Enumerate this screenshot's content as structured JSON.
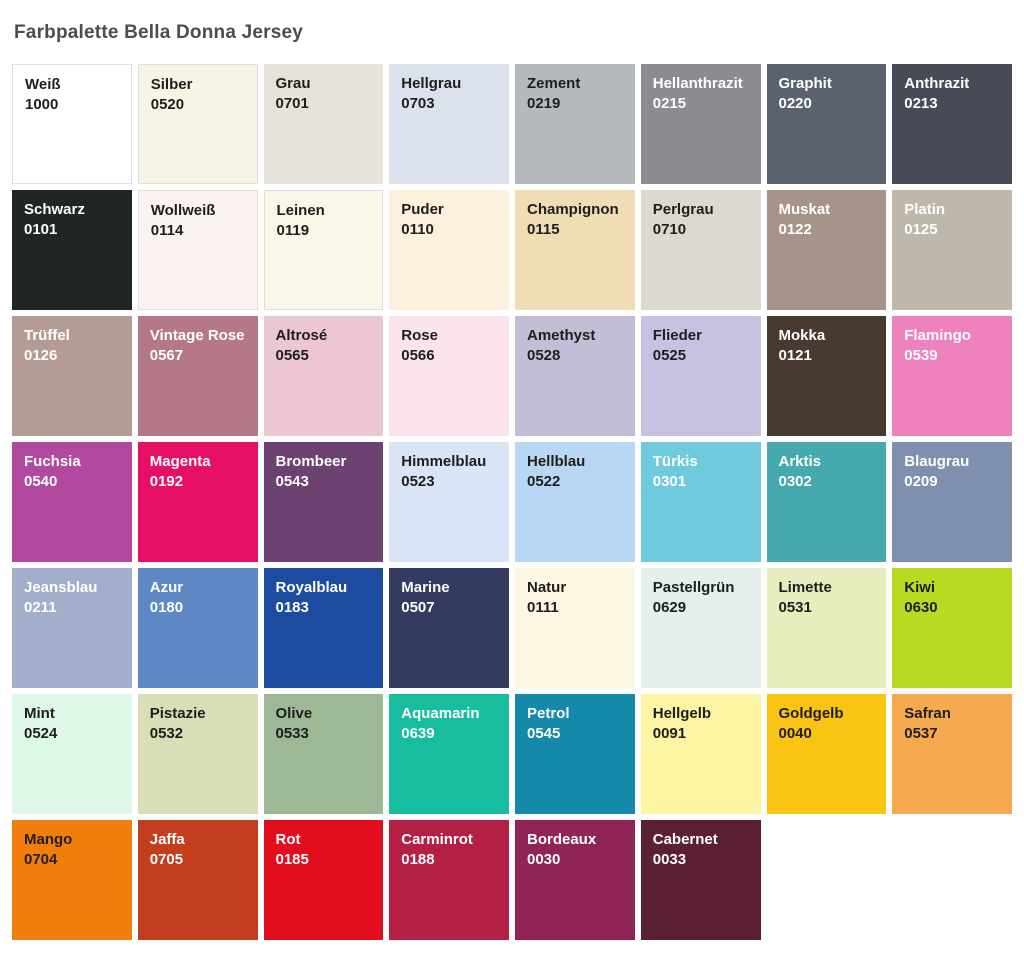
{
  "page": {
    "title": "Farbpalette Bella Donna Jersey",
    "title_color": "#4d4d4d",
    "background": "#ffffff"
  },
  "palette": {
    "columns": 8,
    "swatches": [
      {
        "name": "Weiß",
        "code": "1000",
        "color": "#ffffff",
        "text": "dark",
        "border": true
      },
      {
        "name": "Silber",
        "code": "0520",
        "color": "#f7f4e6",
        "text": "dark",
        "border": true
      },
      {
        "name": "Grau",
        "code": "0701",
        "color": "#e7e3da",
        "text": "dark",
        "border": false
      },
      {
        "name": "Hellgrau",
        "code": "0703",
        "color": "#dbe2eb",
        "text": "dark",
        "border": false
      },
      {
        "name": "Zement",
        "code": "0219",
        "color": "#b7babc",
        "text": "dark",
        "border": false
      },
      {
        "name": "Hellanthrazit",
        "code": "0215",
        "color": "#8b8b91",
        "text": "light",
        "border": false
      },
      {
        "name": "Graphit",
        "code": "0220",
        "color": "#5a626e",
        "text": "light",
        "border": false
      },
      {
        "name": "Anthrazit",
        "code": "0213",
        "color": "#474b55",
        "text": "light",
        "border": false
      },
      {
        "name": "Schwarz",
        "code": "0101",
        "color": "#212622",
        "text": "light",
        "border": false
      },
      {
        "name": "Wollweiß",
        "code": "0114",
        "color": "#faf3f1",
        "text": "dark",
        "border": true
      },
      {
        "name": "Leinen",
        "code": "0119",
        "color": "#fbf7e8",
        "text": "dark",
        "border": true
      },
      {
        "name": "Puder",
        "code": "0110",
        "color": "#fcf1dd",
        "text": "dark",
        "border": false
      },
      {
        "name": "Champignon",
        "code": "0115",
        "color": "#f0ddb6",
        "text": "dark",
        "border": false
      },
      {
        "name": "Perlgrau",
        "code": "0710",
        "color": "#dbd9d0",
        "text": "dark",
        "border": false
      },
      {
        "name": "Muskat",
        "code": "0122",
        "color": "#a6948a",
        "text": "light",
        "border": false
      },
      {
        "name": "Platin",
        "code": "0125",
        "color": "#bdb7ac",
        "text": "light",
        "border": false
      },
      {
        "name": "Trüffel",
        "code": "0126",
        "color": "#b49b95",
        "text": "light",
        "border": false
      },
      {
        "name": "Vintage Rose",
        "code": "0567",
        "color": "#b47889",
        "text": "light",
        "border": false
      },
      {
        "name": "Altrosé",
        "code": "0565",
        "color": "#ecc7d3",
        "text": "dark",
        "border": false
      },
      {
        "name": "Rose",
        "code": "0566",
        "color": "#fce4ef",
        "text": "dark",
        "border": false
      },
      {
        "name": "Amethyst",
        "code": "0528",
        "color": "#c4bdd8",
        "text": "dark",
        "border": false
      },
      {
        "name": "Flieder",
        "code": "0525",
        "color": "#c8c2e2",
        "text": "dark",
        "border": false
      },
      {
        "name": "Mokka",
        "code": "0121",
        "color": "#483931",
        "text": "light",
        "border": false
      },
      {
        "name": "Flamingo",
        "code": "0539",
        "color": "#ed82bd",
        "text": "light",
        "border": false
      },
      {
        "name": "Fuchsia",
        "code": "0540",
        "color": "#b14a9f",
        "text": "light",
        "border": false
      },
      {
        "name": "Magenta",
        "code": "0192",
        "color": "#e60f66",
        "text": "light",
        "border": false
      },
      {
        "name": "Brombeer",
        "code": "0543",
        "color": "#6c4370",
        "text": "light",
        "border": false
      },
      {
        "name": "Himmelblau",
        "code": "0523",
        "color": "#d9e5f6",
        "text": "dark",
        "border": false
      },
      {
        "name": "Hellblau",
        "code": "0522",
        "color": "#b9d6f2",
        "text": "dark",
        "border": false
      },
      {
        "name": "Türkis",
        "code": "0301",
        "color": "#70cade",
        "text": "light",
        "border": false
      },
      {
        "name": "Arktis",
        "code": "0302",
        "color": "#46a9ad",
        "text": "light",
        "border": false
      },
      {
        "name": "Blaugrau",
        "code": "0209",
        "color": "#7e90ad",
        "text": "light",
        "border": false
      },
      {
        "name": "Jeansblau",
        "code": "0211",
        "color": "#a3aecb",
        "text": "light",
        "border": false
      },
      {
        "name": "Azur",
        "code": "0180",
        "color": "#5d88c4",
        "text": "light",
        "border": false
      },
      {
        "name": "Royalblau",
        "code": "0183",
        "color": "#1c4ba0",
        "text": "light",
        "border": false
      },
      {
        "name": "Marine",
        "code": "0507",
        "color": "#343b5e",
        "text": "light",
        "border": false
      },
      {
        "name": "Natur",
        "code": "0111",
        "color": "#fdf6e0",
        "text": "dark",
        "border": false
      },
      {
        "name": "Pastellgrün",
        "code": "0629",
        "color": "#e4f0e9",
        "text": "dark",
        "border": false
      },
      {
        "name": "Limette",
        "code": "0531",
        "color": "#e8edbd",
        "text": "dark",
        "border": false
      },
      {
        "name": "Kiwi",
        "code": "0630",
        "color": "#b8da23",
        "text": "dark",
        "border": false
      },
      {
        "name": "Mint",
        "code": "0524",
        "color": "#def8e7",
        "text": "dark",
        "border": false
      },
      {
        "name": "Pistazie",
        "code": "0532",
        "color": "#d8deb5",
        "text": "dark",
        "border": false
      },
      {
        "name": "Olive",
        "code": "0533",
        "color": "#9db895",
        "text": "dark",
        "border": false
      },
      {
        "name": "Aquamarin",
        "code": "0639",
        "color": "#17bd9e",
        "text": "light",
        "border": false
      },
      {
        "name": "Petrol",
        "code": "0545",
        "color": "#1489a9",
        "text": "light",
        "border": false
      },
      {
        "name": "Hellgelb",
        "code": "0091",
        "color": "#fdf5a3",
        "text": "dark",
        "border": false
      },
      {
        "name": "Goldgelb",
        "code": "0040",
        "color": "#f9c412",
        "text": "dark",
        "border": false
      },
      {
        "name": "Safran",
        "code": "0537",
        "color": "#f6aa50",
        "text": "dark",
        "border": false
      },
      {
        "name": "Mango",
        "code": "0704",
        "color": "#f17d0b",
        "text": "dark",
        "border": false
      },
      {
        "name": "Jaffa",
        "code": "0705",
        "color": "#c23e1c",
        "text": "light",
        "border": false
      },
      {
        "name": "Rot",
        "code": "0185",
        "color": "#e30e1d",
        "text": "light",
        "border": false
      },
      {
        "name": "Carminrot",
        "code": "0188",
        "color": "#b42043",
        "text": "light",
        "border": false
      },
      {
        "name": "Bordeaux",
        "code": "0030",
        "color": "#8f2457",
        "text": "light",
        "border": false
      },
      {
        "name": "Cabernet",
        "code": "0033",
        "color": "#5b2033",
        "text": "light",
        "border": false
      }
    ]
  }
}
